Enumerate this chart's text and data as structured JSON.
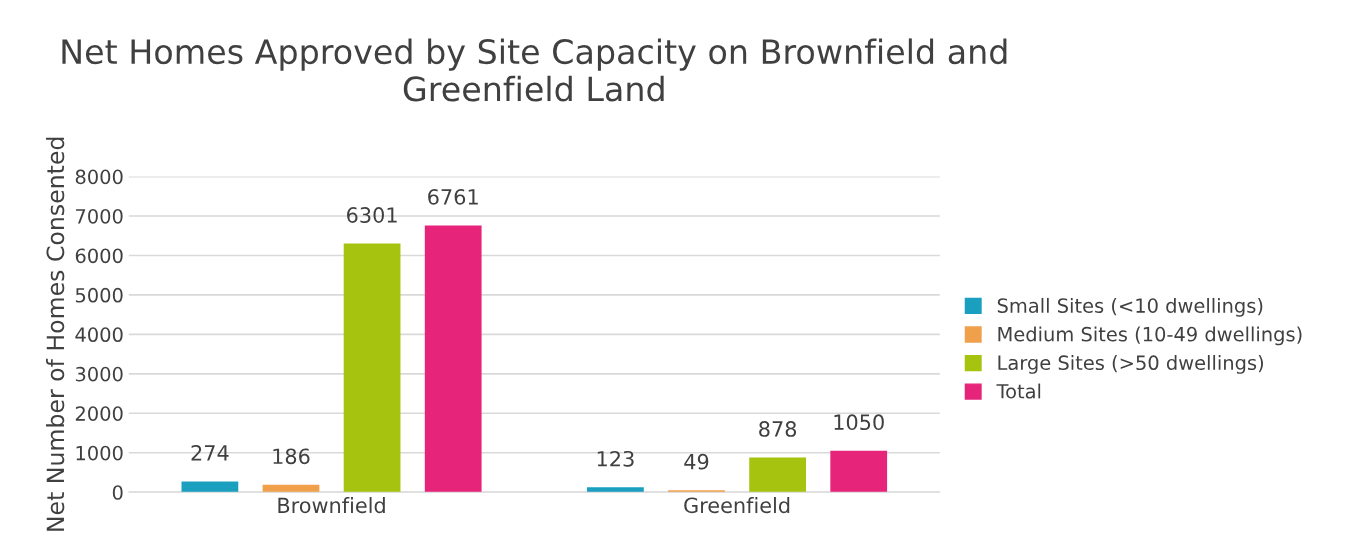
{
  "chart_data": {
    "type": "bar",
    "title": "Net Homes Approved by Site Capacity on Brownfield and Greenfield Land",
    "ylabel": "Net Number of Homes Consented",
    "categories": [
      "Brownfield",
      "Greenfield"
    ],
    "series": [
      {
        "name": "Small Sites (<10 dwellings)",
        "color": "#1a9fbf",
        "values": [
          274,
          123
        ]
      },
      {
        "name": "Medium Sites (10-49 dwellings)",
        "color": "#f0a04b",
        "values": [
          186,
          49
        ]
      },
      {
        "name": "Large Sites (>50 dwellings)",
        "color": "#a6c40f",
        "values": [
          6301,
          878
        ]
      },
      {
        "name": "Total",
        "color": "#e6247a",
        "values": [
          6761,
          1050
        ]
      }
    ],
    "ylim": [
      0,
      8000
    ],
    "yticks": [
      0,
      1000,
      2000,
      3000,
      4000,
      5000,
      6000,
      7000,
      8000
    ],
    "grid": "y",
    "legend": "right",
    "data_labels": true
  }
}
